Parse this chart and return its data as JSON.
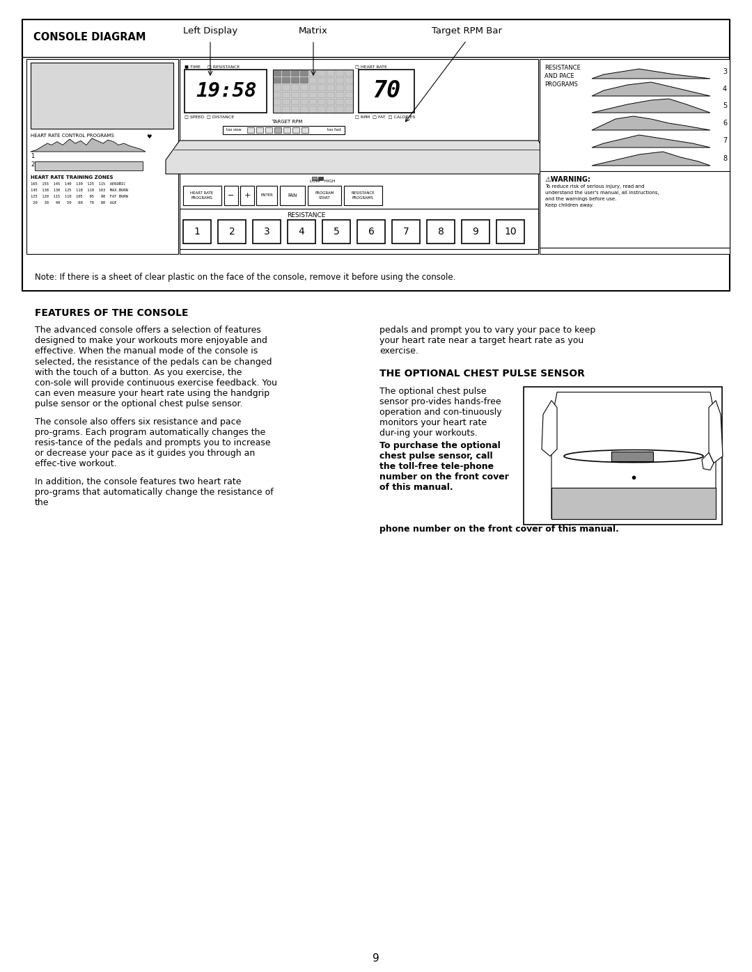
{
  "page_bg": "#ffffff",
  "page_number": "9",
  "console_diagram": {
    "title": "CONSOLE DIAGRAM",
    "label_left_display": "Left Display",
    "label_matrix": "Matrix",
    "label_target_rpm_bar": "Target RPM Bar",
    "note": "Note: If there is a sheet of clear plastic on the face of the console, remove it before using the console."
  },
  "features_title": "FEATURES OF THE CONSOLE",
  "features_para1": "The advanced console offers a selection of features designed to make your workouts more enjoyable and effective. When the manual mode of the console is selected, the resistance of the pedals can be changed with the touch of a button. As you exercise, the con-sole will provide continuous exercise feedback. You can even measure your heart rate using the handgrip pulse sensor or the optional chest pulse sensor.",
  "features_para2": "The console also offers six resistance and pace pro-grams. Each program automatically changes the resis-tance of the pedals and prompts you to increase or decrease your pace as it guides you through an effec-tive workout.",
  "features_para3": "In addition, the console features two heart rate pro-grams that automatically change the resistance of the",
  "features_para3_col2": "pedals and prompt you to vary your pace to keep your heart rate near a target heart rate as you exercise.",
  "chest_sensor_title": "THE OPTIONAL CHEST PULSE SENSOR",
  "chest_sensor_para_normal": "The optional chest pulse sensor pro-vides hands-free operation and con-tinuously monitors your heart rate dur-ing your workouts.",
  "chest_sensor_bold": "To purchase the optional chest pulse sensor, call the toll-free tele-phone number on the front cover of this manual."
}
